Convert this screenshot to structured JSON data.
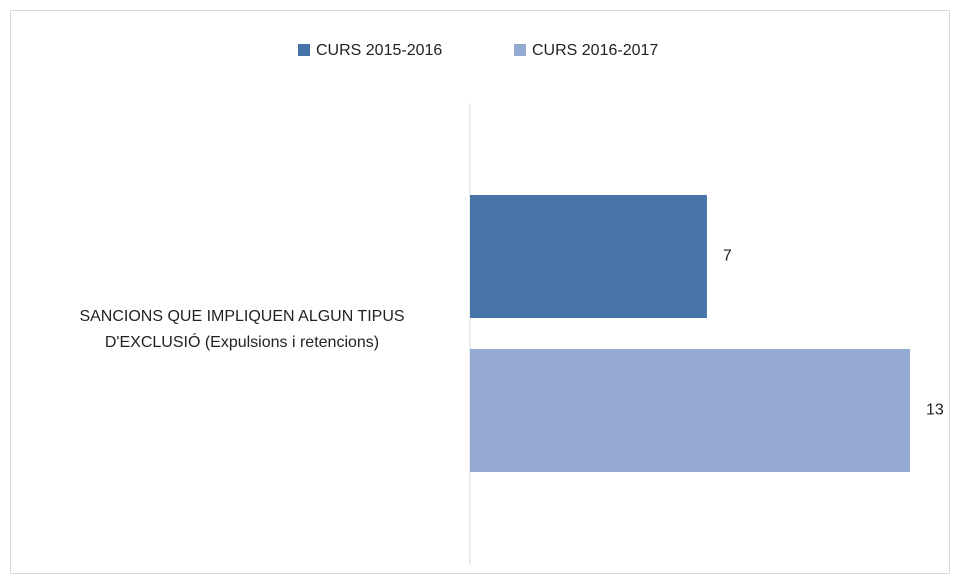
{
  "chart_data": {
    "type": "hbar",
    "categories": [
      "SANCIONS QUE IMPLIQUEN ALGUN TIPUS D'EXCLUSIÓ (Expulsions i retencions)"
    ],
    "series": [
      {
        "name": "CURS 2015-2016",
        "color": "#4674a8",
        "values": [
          7
        ]
      },
      {
        "name": "CURS 2016-2017",
        "color": "#95aad0",
        "values": [
          13
        ]
      }
    ],
    "legend": "top",
    "data_labels": true
  }
}
